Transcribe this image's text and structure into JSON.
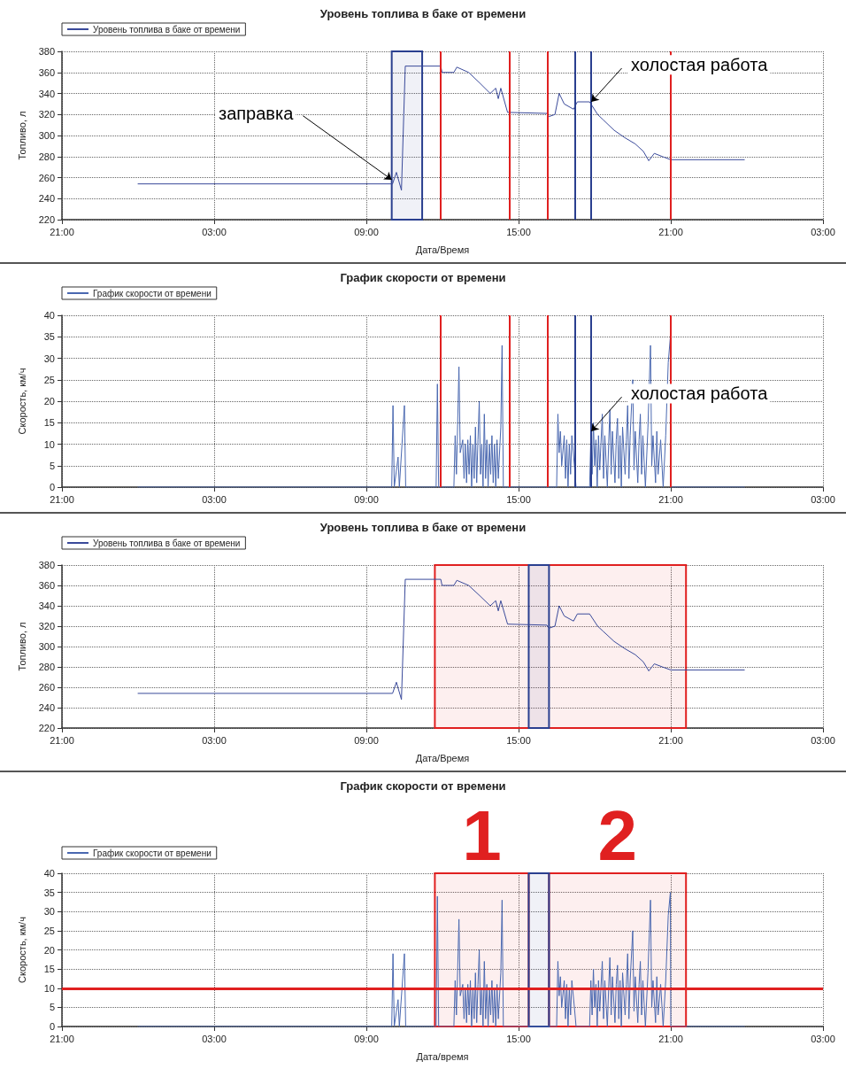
{
  "chart_data": [
    {
      "type": "line",
      "title": "Уровень топлива в баке от времени",
      "xlabel": "Дата/Время",
      "ylabel": "Топливо, л",
      "legend": "top left",
      "grid": true,
      "marker": "none",
      "line_style": "solid",
      "xlim": [
        "2000-01-01T21:00",
        "2000-01-03T03:00"
      ],
      "ylim": [
        220,
        380
      ],
      "xticks": [
        {
          "value": "2000-01-01T21:00",
          "label": "21:00"
        },
        {
          "value": "2000-01-02T03:00",
          "label": "03:00"
        },
        {
          "value": "2000-01-02T09:00",
          "label": "09:00"
        },
        {
          "value": "2000-01-02T15:00",
          "label": "15:00"
        },
        {
          "value": "2000-01-02T21:00",
          "label": "21:00"
        },
        {
          "value": "2000-01-03T03:00",
          "label": "03:00"
        }
      ],
      "yticks": [
        220,
        240,
        260,
        280,
        300,
        320,
        340,
        360,
        380
      ],
      "series": [
        {
          "name": "Уровень топлива в баке от времени",
          "color": "#3a4a9a",
          "x": [
            "2000-01-02T00:00",
            "2000-01-02T10:02",
            "2000-01-02T10:11",
            "2000-01-02T10:23",
            "2000-01-02T10:32",
            "2000-01-02T11:56",
            "2000-01-02T11:59",
            "2000-01-02T12:27",
            "2000-01-02T12:34",
            "2000-01-02T13:02",
            "2000-01-02T13:28",
            "2000-01-02T13:53",
            "2000-01-02T14:06",
            "2000-01-02T14:12",
            "2000-01-02T14:18",
            "2000-01-02T14:34",
            "2000-01-02T16:07",
            "2000-01-02T16:12",
            "2000-01-02T16:26",
            "2000-01-02T16:36",
            "2000-01-02T16:48",
            "2000-01-02T17:10",
            "2000-01-02T17:19",
            "2000-01-02T17:48",
            "2000-01-02T18:07",
            "2000-01-02T18:20",
            "2000-01-02T18:46",
            "2000-01-02T19:11",
            "2000-01-02T19:36",
            "2000-01-02T19:55",
            "2000-01-02T20:08",
            "2000-01-02T20:21",
            "2000-01-02T20:40",
            "2000-01-02T21:00",
            "2000-01-02T23:54"
          ],
          "values": [
            254,
            254,
            265,
            248,
            366,
            366,
            360,
            360,
            365,
            360,
            350,
            340,
            345,
            335,
            345,
            322,
            321,
            318,
            320,
            340,
            330,
            325,
            332,
            332,
            320,
            315,
            305,
            298,
            292,
            285,
            276,
            283,
            280,
            277,
            277
          ]
        }
      ],
      "ref_lines": [
        {
          "axis": "x",
          "value": "2000-01-02T11:56",
          "color": "#e02020"
        },
        {
          "axis": "x",
          "value": "2000-01-02T14:39",
          "color": "#e02020"
        },
        {
          "axis": "x",
          "value": "2000-01-02T16:09",
          "color": "#e02020"
        },
        {
          "axis": "x",
          "value": "2000-01-02T21:00",
          "color": "#e02020"
        },
        {
          "axis": "x",
          "value": "2000-01-02T17:14",
          "color": "#2a3f8f"
        },
        {
          "axis": "x",
          "value": "2000-01-02T17:52",
          "color": "#2a3f8f"
        }
      ],
      "bands": [
        {
          "axis": "x",
          "from": "2000-01-02T10:00",
          "to": "2000-01-02T11:12",
          "color": "#2a3f8f"
        }
      ],
      "annotations": [
        {
          "text": "заправка",
          "x": "2000-01-02T10:00",
          "y": 258
        },
        {
          "text": "холостая работа",
          "x": "2000-01-02T17:52",
          "y": 332
        }
      ]
    },
    {
      "type": "line",
      "title": "График скорости от времени",
      "ylabel": "Скорость, км/ч",
      "legend": "top left",
      "grid": true,
      "marker": "none",
      "line_style": "solid",
      "xlim": [
        "2000-01-01T21:00",
        "2000-01-03T03:00"
      ],
      "ylim": [
        0,
        40
      ],
      "xticks": [
        {
          "value": "2000-01-01T21:00",
          "label": "21:00"
        },
        {
          "value": "2000-01-02T03:00",
          "label": "03:00"
        },
        {
          "value": "2000-01-02T09:00",
          "label": "09:00"
        },
        {
          "value": "2000-01-02T15:00",
          "label": "15:00"
        },
        {
          "value": "2000-01-02T21:00",
          "label": "21:00"
        },
        {
          "value": "2000-01-03T03:00",
          "label": "03:00"
        }
      ],
      "yticks": [
        0,
        5,
        10,
        15,
        20,
        25,
        30,
        35,
        40
      ],
      "series": [
        {
          "name": "График скорости от времени",
          "color": "#4a68b0",
          "x": [
            "2000-01-02T00:00",
            "2000-01-02T10:00",
            "2000-01-02T10:03",
            "2000-01-02T10:06",
            "2000-01-02T10:15",
            "2000-01-02T10:18",
            "2000-01-02T10:30",
            "2000-01-02T10:33",
            "2000-01-02T11:45",
            "2000-01-02T11:48",
            "2000-01-02T11:51",
            "2000-01-02T12:27",
            "2000-01-02T12:30",
            "2000-01-02T12:33",
            "2000-01-02T12:36",
            "2000-01-02T12:39",
            "2000-01-02T12:42",
            "2000-01-02T12:48",
            "2000-01-02T12:51",
            "2000-01-02T12:54",
            "2000-01-02T12:57",
            "2000-01-02T13:00",
            "2000-01-02T13:03",
            "2000-01-02T13:06",
            "2000-01-02T13:09",
            "2000-01-02T13:12",
            "2000-01-02T13:15",
            "2000-01-02T13:18",
            "2000-01-02T13:21",
            "2000-01-02T13:24",
            "2000-01-02T13:27",
            "2000-01-02T13:30",
            "2000-01-02T13:33",
            "2000-01-02T13:36",
            "2000-01-02T13:39",
            "2000-01-02T13:42",
            "2000-01-02T13:45",
            "2000-01-02T13:48",
            "2000-01-02T13:51",
            "2000-01-02T13:54",
            "2000-01-02T13:57",
            "2000-01-02T14:00",
            "2000-01-02T14:03",
            "2000-01-02T14:06",
            "2000-01-02T14:09",
            "2000-01-02T14:12",
            "2000-01-02T14:18",
            "2000-01-02T14:21",
            "2000-01-02T14:24",
            "2000-01-02T16:30",
            "2000-01-02T16:33",
            "2000-01-02T16:36",
            "2000-01-02T16:39",
            "2000-01-02T16:42",
            "2000-01-02T16:48",
            "2000-01-02T16:51",
            "2000-01-02T16:54",
            "2000-01-02T16:57",
            "2000-01-02T17:00",
            "2000-01-02T17:03",
            "2000-01-02T17:06",
            "2000-01-02T17:12",
            "2000-01-02T17:16",
            "2000-01-02T17:48",
            "2000-01-02T17:51",
            "2000-01-02T17:54",
            "2000-01-02T17:57",
            "2000-01-02T18:00",
            "2000-01-02T18:03",
            "2000-01-02T18:06",
            "2000-01-02T18:09",
            "2000-01-02T18:12",
            "2000-01-02T18:18",
            "2000-01-02T18:21",
            "2000-01-02T18:24",
            "2000-01-02T18:30",
            "2000-01-02T18:33",
            "2000-01-02T18:36",
            "2000-01-02T18:39",
            "2000-01-02T18:42",
            "2000-01-02T18:48",
            "2000-01-02T18:51",
            "2000-01-02T18:54",
            "2000-01-02T18:57",
            "2000-01-02T19:00",
            "2000-01-02T19:03",
            "2000-01-02T19:06",
            "2000-01-02T19:12",
            "2000-01-02T19:15",
            "2000-01-02T19:18",
            "2000-01-02T19:21",
            "2000-01-02T19:24",
            "2000-01-02T19:30",
            "2000-01-02T19:33",
            "2000-01-02T19:36",
            "2000-01-02T19:42",
            "2000-01-02T19:45",
            "2000-01-02T19:48",
            "2000-01-02T19:51",
            "2000-01-02T19:54",
            "2000-01-02T20:00",
            "2000-01-02T20:06",
            "2000-01-02T20:12",
            "2000-01-02T20:15",
            "2000-01-02T20:18",
            "2000-01-02T20:24",
            "2000-01-02T20:27",
            "2000-01-02T20:30",
            "2000-01-02T20:36",
            "2000-01-02T20:42",
            "2000-01-02T20:48",
            "2000-01-02T20:54",
            "2000-01-02T20:59",
            "2000-01-02T21:00",
            "2000-01-02T23:54"
          ],
          "values": [
            0,
            0,
            19,
            0,
            7,
            0,
            19,
            0,
            0,
            24,
            0,
            0,
            12,
            3,
            15,
            28,
            8,
            11,
            2,
            10,
            1,
            11,
            3,
            12,
            0,
            10,
            2,
            14,
            1,
            11,
            20,
            3,
            10,
            0,
            17,
            2,
            11,
            0,
            10,
            3,
            12,
            1,
            10,
            0,
            11,
            2,
            14,
            33,
            0,
            0,
            17,
            8,
            13,
            5,
            12,
            2,
            11,
            0,
            10,
            3,
            12,
            5,
            0,
            0,
            12,
            3,
            15,
            5,
            11,
            0,
            12,
            4,
            17,
            2,
            12,
            0,
            10,
            18,
            3,
            13,
            1,
            11,
            16,
            2,
            12,
            0,
            14,
            3,
            11,
            19,
            2,
            12,
            25,
            4,
            13,
            1,
            11,
            17,
            3,
            12,
            0,
            14,
            33,
            5,
            12,
            1,
            13,
            3,
            11,
            0,
            12,
            29,
            35,
            0,
            0
          ]
        }
      ],
      "ref_lines": [
        {
          "axis": "x",
          "value": "2000-01-02T11:56",
          "color": "#e02020"
        },
        {
          "axis": "x",
          "value": "2000-01-02T14:39",
          "color": "#e02020"
        },
        {
          "axis": "x",
          "value": "2000-01-02T16:09",
          "color": "#e02020"
        },
        {
          "axis": "x",
          "value": "2000-01-02T21:00",
          "color": "#e02020"
        },
        {
          "axis": "x",
          "value": "2000-01-02T17:14",
          "color": "#2a3f8f"
        },
        {
          "axis": "x",
          "value": "2000-01-02T17:52",
          "color": "#2a3f8f"
        }
      ],
      "annotations": [
        {
          "text": "холостая работа",
          "x": "2000-01-02T17:52",
          "y": 13
        }
      ]
    },
    {
      "type": "line",
      "title": "Уровень топлива в баке от времени",
      "xlabel": "Дата/Время",
      "ylabel": "Топливо, л",
      "legend": "top left",
      "grid": true,
      "marker": "none",
      "line_style": "solid",
      "xlim": [
        "2000-01-01T21:00",
        "2000-01-03T03:00"
      ],
      "ylim": [
        220,
        380
      ],
      "xticks": [
        {
          "value": "2000-01-01T21:00",
          "label": "21:00"
        },
        {
          "value": "2000-01-02T03:00",
          "label": "03:00"
        },
        {
          "value": "2000-01-02T09:00",
          "label": "09:00"
        },
        {
          "value": "2000-01-02T15:00",
          "label": "15:00"
        },
        {
          "value": "2000-01-02T21:00",
          "label": "21:00"
        },
        {
          "value": "2000-01-03T03:00",
          "label": "03:00"
        }
      ],
      "yticks": [
        220,
        240,
        260,
        280,
        300,
        320,
        340,
        360,
        380
      ],
      "series": [
        {
          "name": "Уровень топлива в баке от времени",
          "color": "#3a4a9a",
          "x": [
            "2000-01-02T00:00",
            "2000-01-02T10:02",
            "2000-01-02T10:11",
            "2000-01-02T10:23",
            "2000-01-02T10:32",
            "2000-01-02T11:56",
            "2000-01-02T11:59",
            "2000-01-02T12:27",
            "2000-01-02T12:34",
            "2000-01-02T13:02",
            "2000-01-02T13:28",
            "2000-01-02T13:53",
            "2000-01-02T14:06",
            "2000-01-02T14:12",
            "2000-01-02T14:18",
            "2000-01-02T14:34",
            "2000-01-02T16:07",
            "2000-01-02T16:12",
            "2000-01-02T16:26",
            "2000-01-02T16:36",
            "2000-01-02T16:48",
            "2000-01-02T17:10",
            "2000-01-02T17:19",
            "2000-01-02T17:48",
            "2000-01-02T18:07",
            "2000-01-02T18:20",
            "2000-01-02T18:46",
            "2000-01-02T19:11",
            "2000-01-02T19:36",
            "2000-01-02T19:55",
            "2000-01-02T20:08",
            "2000-01-02T20:21",
            "2000-01-02T20:40",
            "2000-01-02T21:00",
            "2000-01-02T23:54"
          ],
          "values": [
            254,
            254,
            265,
            248,
            366,
            366,
            360,
            360,
            365,
            360,
            350,
            340,
            345,
            335,
            345,
            322,
            321,
            318,
            320,
            340,
            330,
            325,
            332,
            332,
            320,
            315,
            305,
            298,
            292,
            285,
            276,
            283,
            280,
            277,
            277
          ]
        }
      ],
      "bands": [
        {
          "axis": "x",
          "from": "2000-01-02T11:42",
          "to": "2000-01-02T21:36",
          "color": "#e02020"
        },
        {
          "axis": "x",
          "from": "2000-01-02T15:24",
          "to": "2000-01-02T16:12",
          "color": "#2a3f8f"
        }
      ]
    },
    {
      "type": "line",
      "title": "График скорости от времени",
      "xlabel": "Дата/время",
      "ylabel": "Скорость, км/ч",
      "legend": "top left",
      "grid": true,
      "marker": "none",
      "line_style": "solid",
      "xlim": [
        "2000-01-01T21:00",
        "2000-01-03T03:00"
      ],
      "ylim": [
        0,
        40
      ],
      "xticks": [
        {
          "value": "2000-01-01T21:00",
          "label": "21:00"
        },
        {
          "value": "2000-01-02T03:00",
          "label": "03:00"
        },
        {
          "value": "2000-01-02T09:00",
          "label": "09:00"
        },
        {
          "value": "2000-01-02T15:00",
          "label": "15:00"
        },
        {
          "value": "2000-01-02T21:00",
          "label": "21:00"
        },
        {
          "value": "2000-01-03T03:00",
          "label": "03:00"
        }
      ],
      "yticks": [
        0,
        5,
        10,
        15,
        20,
        25,
        30,
        35,
        40
      ],
      "series": [
        {
          "name": "График скорости от времени",
          "color": "#4a68b0",
          "x": [
            "2000-01-02T00:00",
            "2000-01-02T10:00",
            "2000-01-02T10:03",
            "2000-01-02T10:06",
            "2000-01-02T10:15",
            "2000-01-02T10:18",
            "2000-01-02T10:30",
            "2000-01-02T10:33",
            "2000-01-02T11:45",
            "2000-01-02T11:48",
            "2000-01-02T11:51",
            "2000-01-02T12:27",
            "2000-01-02T12:30",
            "2000-01-02T12:33",
            "2000-01-02T12:36",
            "2000-01-02T12:39",
            "2000-01-02T12:42",
            "2000-01-02T12:48",
            "2000-01-02T12:51",
            "2000-01-02T12:54",
            "2000-01-02T12:57",
            "2000-01-02T13:00",
            "2000-01-02T13:03",
            "2000-01-02T13:06",
            "2000-01-02T13:09",
            "2000-01-02T13:12",
            "2000-01-02T13:15",
            "2000-01-02T13:18",
            "2000-01-02T13:21",
            "2000-01-02T13:24",
            "2000-01-02T13:27",
            "2000-01-02T13:30",
            "2000-01-02T13:33",
            "2000-01-02T13:36",
            "2000-01-02T13:39",
            "2000-01-02T13:42",
            "2000-01-02T13:45",
            "2000-01-02T13:48",
            "2000-01-02T13:51",
            "2000-01-02T13:54",
            "2000-01-02T13:57",
            "2000-01-02T14:00",
            "2000-01-02T14:03",
            "2000-01-02T14:06",
            "2000-01-02T14:09",
            "2000-01-02T14:12",
            "2000-01-02T14:18",
            "2000-01-02T14:21",
            "2000-01-02T14:24",
            "2000-01-02T16:30",
            "2000-01-02T16:33",
            "2000-01-02T16:36",
            "2000-01-02T16:39",
            "2000-01-02T16:42",
            "2000-01-02T16:48",
            "2000-01-02T16:51",
            "2000-01-02T16:54",
            "2000-01-02T16:57",
            "2000-01-02T17:00",
            "2000-01-02T17:03",
            "2000-01-02T17:06",
            "2000-01-02T17:12",
            "2000-01-02T17:16",
            "2000-01-02T17:48",
            "2000-01-02T17:51",
            "2000-01-02T17:54",
            "2000-01-02T17:57",
            "2000-01-02T18:00",
            "2000-01-02T18:03",
            "2000-01-02T18:06",
            "2000-01-02T18:09",
            "2000-01-02T18:12",
            "2000-01-02T18:18",
            "2000-01-02T18:21",
            "2000-01-02T18:24",
            "2000-01-02T18:30",
            "2000-01-02T18:33",
            "2000-01-02T18:36",
            "2000-01-02T18:39",
            "2000-01-02T18:42",
            "2000-01-02T18:48",
            "2000-01-02T18:51",
            "2000-01-02T18:54",
            "2000-01-02T18:57",
            "2000-01-02T19:00",
            "2000-01-02T19:03",
            "2000-01-02T19:06",
            "2000-01-02T19:12",
            "2000-01-02T19:15",
            "2000-01-02T19:18",
            "2000-01-02T19:21",
            "2000-01-02T19:24",
            "2000-01-02T19:30",
            "2000-01-02T19:33",
            "2000-01-02T19:36",
            "2000-01-02T19:42",
            "2000-01-02T19:45",
            "2000-01-02T19:48",
            "2000-01-02T19:51",
            "2000-01-02T19:54",
            "2000-01-02T20:00",
            "2000-01-02T20:06",
            "2000-01-02T20:12",
            "2000-01-02T20:15",
            "2000-01-02T20:18",
            "2000-01-02T20:24",
            "2000-01-02T20:27",
            "2000-01-02T20:30",
            "2000-01-02T20:36",
            "2000-01-02T20:42",
            "2000-01-02T20:48",
            "2000-01-02T20:54",
            "2000-01-02T20:59",
            "2000-01-02T21:00",
            "2000-01-02T23:54"
          ],
          "values": [
            0,
            0,
            19,
            0,
            7,
            0,
            19,
            0,
            0,
            34,
            0,
            0,
            12,
            3,
            15,
            28,
            8,
            11,
            2,
            10,
            1,
            11,
            3,
            12,
            0,
            10,
            2,
            14,
            1,
            11,
            20,
            3,
            10,
            0,
            17,
            2,
            11,
            0,
            10,
            3,
            12,
            1,
            10,
            0,
            11,
            2,
            14,
            33,
            0,
            0,
            17,
            8,
            13,
            5,
            12,
            2,
            11,
            0,
            10,
            3,
            12,
            5,
            0,
            0,
            12,
            3,
            15,
            5,
            11,
            0,
            12,
            4,
            17,
            2,
            12,
            0,
            10,
            18,
            3,
            13,
            1,
            11,
            16,
            2,
            12,
            0,
            14,
            3,
            11,
            19,
            2,
            12,
            25,
            4,
            13,
            1,
            11,
            17,
            3,
            12,
            0,
            14,
            33,
            5,
            12,
            1,
            13,
            3,
            11,
            0,
            12,
            29,
            35,
            0,
            0
          ]
        }
      ],
      "ref_lines": [
        {
          "axis": "y",
          "value": 10,
          "color": "#e02020"
        }
      ],
      "bands": [
        {
          "axis": "x",
          "from": "2000-01-02T11:42",
          "to": "2000-01-02T15:24",
          "label": "1",
          "color": "#e02020"
        },
        {
          "axis": "x",
          "from": "2000-01-02T16:12",
          "to": "2000-01-02T21:36",
          "label": "2",
          "color": "#e02020"
        },
        {
          "axis": "x",
          "from": "2000-01-02T15:24",
          "to": "2000-01-02T16:12",
          "color": "#2a3f8f"
        }
      ]
    }
  ]
}
